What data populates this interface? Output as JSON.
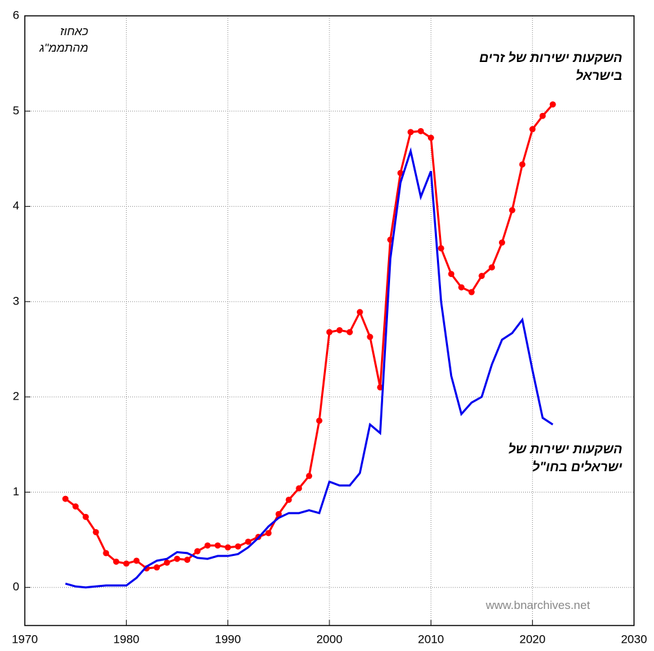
{
  "chart_data": {
    "type": "line",
    "y_unit_label": "כאחוז מהתממ\"ג",
    "watermark": "www.bnarchives.net",
    "x": [
      1974,
      1975,
      1976,
      1977,
      1978,
      1979,
      1980,
      1981,
      1982,
      1983,
      1984,
      1985,
      1986,
      1987,
      1988,
      1989,
      1990,
      1991,
      1992,
      1993,
      1994,
      1995,
      1996,
      1997,
      1998,
      1999,
      2000,
      2001,
      2002,
      2003,
      2004,
      2005,
      2006,
      2007,
      2008,
      2009,
      2010,
      2011,
      2012,
      2013,
      2014,
      2015,
      2016,
      2017,
      2018,
      2019,
      2020,
      2021,
      2022
    ],
    "series": [
      {
        "name": "השקעות ישירות של זרים בישראל",
        "color": "#ff0000",
        "markers": true,
        "values": [
          0.93,
          0.85,
          0.74,
          0.58,
          0.36,
          0.27,
          0.25,
          0.28,
          0.2,
          0.21,
          0.26,
          0.3,
          0.29,
          0.38,
          0.44,
          0.44,
          0.42,
          0.43,
          0.48,
          0.53,
          0.57,
          0.77,
          0.92,
          1.04,
          1.17,
          1.75,
          2.68,
          2.7,
          2.68,
          2.89,
          2.63,
          2.1,
          3.65,
          4.35,
          4.78,
          4.79,
          4.72,
          3.56,
          3.29,
          3.15,
          3.1,
          3.27,
          3.36,
          3.62,
          3.96,
          4.44,
          4.81,
          4.95,
          5.07
        ]
      },
      {
        "name": "השקעות ישירות של ישראלים בחו\"ל",
        "color": "#0000ee",
        "markers": false,
        "values": [
          0.04,
          0.01,
          0.0,
          0.01,
          0.02,
          0.02,
          0.02,
          0.1,
          0.22,
          0.28,
          0.3,
          0.37,
          0.36,
          0.31,
          0.3,
          0.33,
          0.33,
          0.35,
          0.42,
          0.52,
          0.64,
          0.73,
          0.78,
          0.78,
          0.81,
          0.78,
          1.11,
          1.07,
          1.07,
          1.2,
          1.71,
          1.62,
          3.45,
          4.25,
          4.58,
          4.1,
          4.37,
          3.0,
          2.22,
          1.82,
          1.94,
          2.0,
          2.34,
          2.6,
          2.67,
          2.81,
          2.28,
          1.78,
          1.71
        ]
      }
    ],
    "xlim": [
      1970,
      2030
    ],
    "xticks": [
      1970,
      1980,
      1990,
      2000,
      2010,
      2020,
      2030
    ],
    "ylim": [
      -0.4,
      6
    ],
    "yticks": [
      0,
      1,
      2,
      3,
      4,
      5,
      6
    ],
    "grid": true
  }
}
